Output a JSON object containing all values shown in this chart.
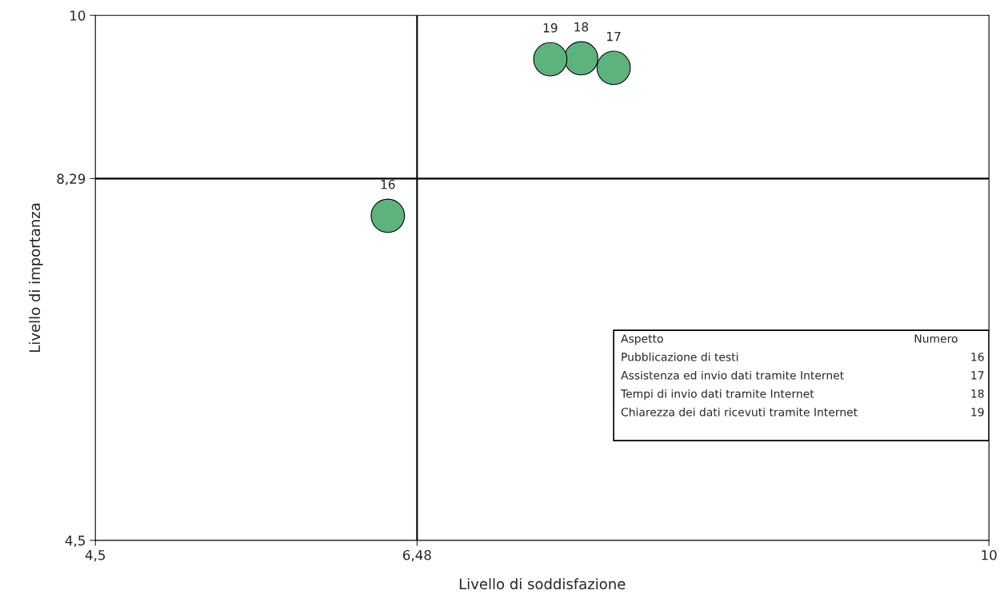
{
  "chart_data": {
    "type": "scatter",
    "xlabel": "Livello di soddisfazione",
    "ylabel": "Livello di importanza",
    "series": [
      {
        "name": "16",
        "color": "#5db37e",
        "x": [
          6.3
        ],
        "values": [
          7.9
        ]
      },
      {
        "name": "17",
        "color": "#5db37e",
        "x": [
          7.69
        ],
        "values": [
          9.45
        ]
      },
      {
        "name": "18",
        "color": "#5db37e",
        "x": [
          7.49
        ],
        "values": [
          9.55
        ]
      },
      {
        "name": "19",
        "color": "#5db37e",
        "x": [
          7.3
        ],
        "values": [
          9.54
        ]
      }
    ],
    "marker": "circle",
    "grid": false,
    "xlim": [
      4.5,
      10
    ],
    "ylim": [
      4.5,
      10
    ],
    "xticks": [
      {
        "value": 4.5,
        "label": "4,5"
      },
      {
        "value": 6.48,
        "label": "6,48"
      },
      {
        "value": 10,
        "label": "10"
      }
    ],
    "yticks": [
      {
        "value": 4.5,
        "label": "4,5"
      },
      {
        "value": 8.29,
        "label": "8,29"
      },
      {
        "value": 10,
        "label": "10"
      }
    ],
    "ref_lines": [
      {
        "axis": "x",
        "value": 6.48,
        "color": "#000000"
      },
      {
        "axis": "y",
        "value": 8.29,
        "color": "#000000"
      }
    ],
    "annotations": [
      "Aspetto",
      "Numero",
      "Pubblicazione di testi",
      "16",
      "Assistenza ed invio dati tramite Internet",
      "17",
      "Tempi di invio dati tramite Internet",
      "18",
      "Chiarezza dei dati ricevuti tramite Internet",
      "19"
    ]
  }
}
